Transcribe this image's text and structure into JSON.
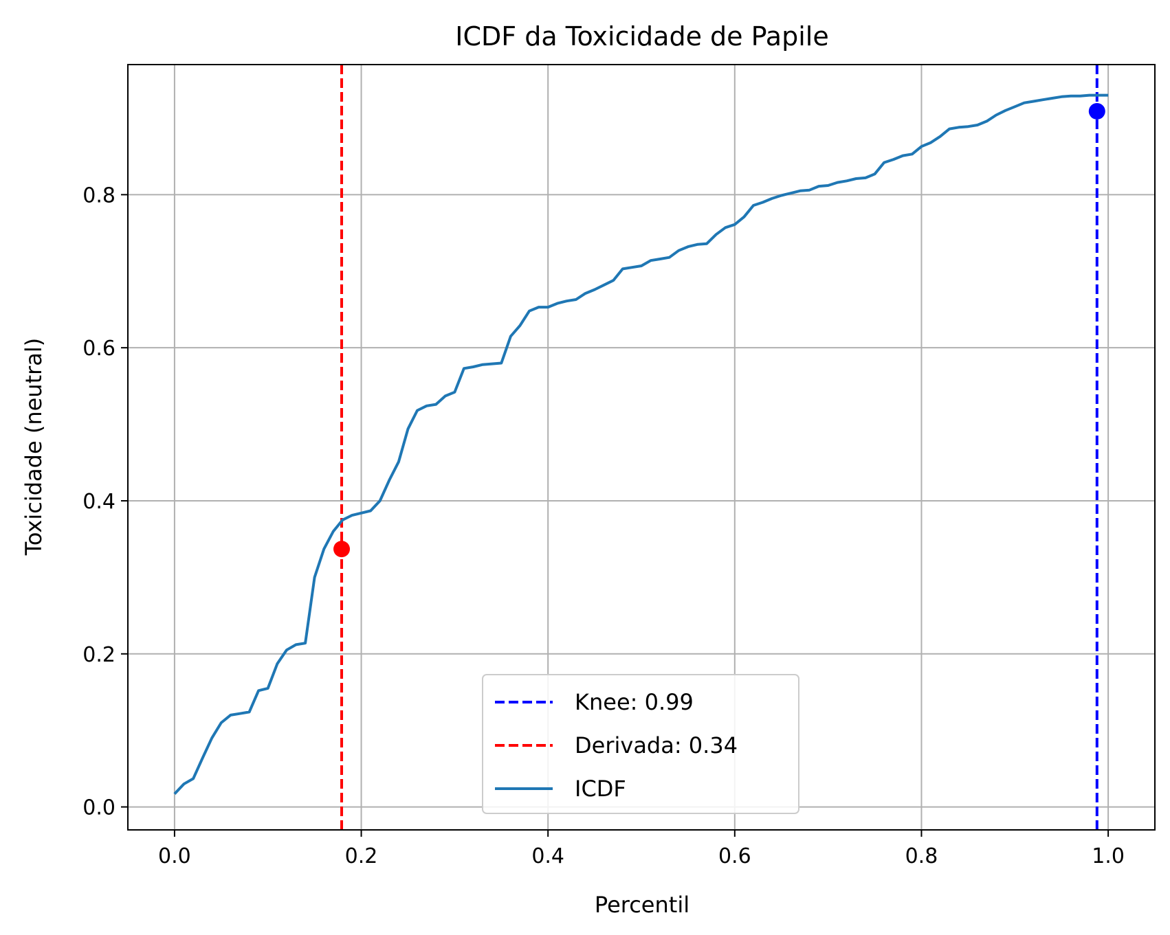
{
  "chart_data": {
    "type": "line",
    "title": "ICDF da Toxicidade de Papile",
    "xlabel": "Percentil",
    "ylabel": "Toxicidade (neutral)",
    "xlim": [
      -0.05,
      1.05
    ],
    "ylim": [
      -0.03,
      0.97
    ],
    "xticks": [
      0.0,
      0.2,
      0.4,
      0.6,
      0.8,
      1.0
    ],
    "xtick_labels": [
      "0.0",
      "0.2",
      "0.4",
      "0.6",
      "0.8",
      "1.0"
    ],
    "yticks": [
      0.0,
      0.2,
      0.4,
      0.6,
      0.8
    ],
    "ytick_labels": [
      "0.0",
      "0.2",
      "0.4",
      "0.6",
      "0.8"
    ],
    "grid": true,
    "legend_position": "lower-center",
    "series": [
      {
        "name": "ICDF",
        "color": "#1f77b4",
        "style": "solid",
        "x": [
          0.0,
          0.01,
          0.02,
          0.03,
          0.04,
          0.05,
          0.06,
          0.07,
          0.08,
          0.09,
          0.1,
          0.11,
          0.12,
          0.13,
          0.14,
          0.15,
          0.16,
          0.17,
          0.18,
          0.19,
          0.2,
          0.21,
          0.22,
          0.23,
          0.24,
          0.25,
          0.26,
          0.27,
          0.28,
          0.29,
          0.3,
          0.31,
          0.32,
          0.33,
          0.34,
          0.35,
          0.36,
          0.37,
          0.38,
          0.39,
          0.4,
          0.41,
          0.42,
          0.43,
          0.44,
          0.45,
          0.46,
          0.47,
          0.48,
          0.49,
          0.5,
          0.51,
          0.52,
          0.53,
          0.54,
          0.55,
          0.56,
          0.57,
          0.58,
          0.59,
          0.6,
          0.61,
          0.62,
          0.63,
          0.64,
          0.65,
          0.66,
          0.67,
          0.68,
          0.69,
          0.7,
          0.71,
          0.72,
          0.73,
          0.74,
          0.75,
          0.76,
          0.77,
          0.78,
          0.79,
          0.8,
          0.81,
          0.82,
          0.83,
          0.84,
          0.85,
          0.86,
          0.87,
          0.88,
          0.89,
          0.9,
          0.91,
          0.92,
          0.93,
          0.94,
          0.95,
          0.96,
          0.97,
          0.98,
          0.99,
          1.0
        ],
        "y": [
          0.017,
          0.03,
          0.037,
          0.064,
          0.09,
          0.11,
          0.12,
          0.122,
          0.124,
          0.152,
          0.155,
          0.187,
          0.205,
          0.212,
          0.214,
          0.3,
          0.337,
          0.36,
          0.375,
          0.381,
          0.384,
          0.387,
          0.4,
          0.427,
          0.451,
          0.494,
          0.518,
          0.524,
          0.526,
          0.537,
          0.542,
          0.573,
          0.575,
          0.578,
          0.579,
          0.58,
          0.615,
          0.629,
          0.648,
          0.653,
          0.653,
          0.658,
          0.661,
          0.663,
          0.671,
          0.676,
          0.682,
          0.688,
          0.703,
          0.705,
          0.707,
          0.714,
          0.716,
          0.718,
          0.727,
          0.732,
          0.735,
          0.736,
          0.748,
          0.757,
          0.761,
          0.771,
          0.786,
          0.79,
          0.795,
          0.799,
          0.802,
          0.805,
          0.806,
          0.811,
          0.812,
          0.816,
          0.818,
          0.821,
          0.822,
          0.827,
          0.842,
          0.846,
          0.851,
          0.853,
          0.863,
          0.868,
          0.876,
          0.886,
          0.888,
          0.889,
          0.891,
          0.896,
          0.904,
          0.91,
          0.915,
          0.92,
          0.922,
          0.924,
          0.926,
          0.928,
          0.929,
          0.929,
          0.93,
          0.93,
          0.93
        ]
      }
    ],
    "vlines": [
      {
        "name": "Knee: 0.99",
        "x": 0.988,
        "color": "#0000ff",
        "style": "dashed"
      },
      {
        "name": "Derivada: 0.34",
        "x": 0.179,
        "color": "#ff0000",
        "style": "dashed"
      }
    ],
    "points": [
      {
        "label": "knee-point",
        "x": 0.988,
        "y": 0.909,
        "color": "#0000ff"
      },
      {
        "label": "derivative-point",
        "x": 0.179,
        "y": 0.337,
        "color": "#ff0000"
      }
    ],
    "legend": [
      {
        "label": "Knee: 0.99",
        "color": "#0000ff",
        "style": "dashed"
      },
      {
        "label": "Derivada: 0.34",
        "color": "#ff0000",
        "style": "dashed"
      },
      {
        "label": "ICDF",
        "color": "#1f77b4",
        "style": "solid"
      }
    ]
  }
}
